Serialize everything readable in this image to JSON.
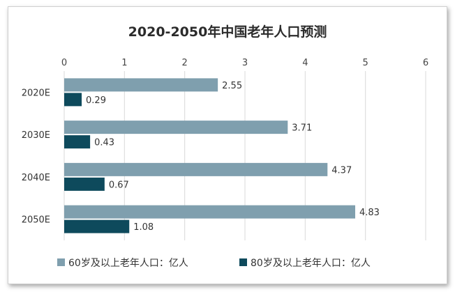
{
  "chart_data": {
    "type": "bar",
    "orientation": "horizontal",
    "title": "2020-2050年中国老年人口预测",
    "categories": [
      "2020E",
      "2030E",
      "2040E",
      "2050E"
    ],
    "series": [
      {
        "name": "60岁及以上老年人口：亿人",
        "values": [
          2.55,
          3.71,
          4.37,
          4.83
        ],
        "color": "#7f9fae"
      },
      {
        "name": "80岁及以上老年人口：亿人",
        "values": [
          0.29,
          0.43,
          0.67,
          1.08
        ],
        "color": "#0e4a5c"
      }
    ],
    "xlim": [
      0,
      6
    ],
    "xticks": [
      "0",
      "1",
      "2",
      "3",
      "4",
      "5",
      "6"
    ],
    "x_axis_position": "top",
    "grid": true,
    "legend_position": "bottom",
    "data_labels": true
  }
}
